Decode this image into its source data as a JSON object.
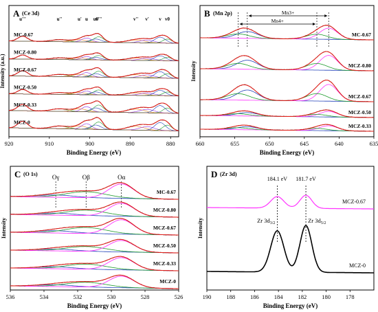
{
  "chart_data": [
    {
      "panel_letter": "A",
      "title": "(Ce 3d)",
      "type": "line",
      "xlabel": "Binding Energy (eV)",
      "ylabel": "Intensity (a.u.)",
      "xlim": [
        920,
        878
      ],
      "x_reversed": true,
      "xticks": [
        920,
        910,
        900,
        890,
        880
      ],
      "samples": [
        "MC-0.67",
        "MCZ-0.80",
        "MCZ-0.67",
        "MCZ-0.50",
        "MCZ-0.33",
        "MCZ-0"
      ],
      "peak_labels": [
        {
          "text": "u'''",
          "x": 916.6
        },
        {
          "text": "u''",
          "x": 907.5
        },
        {
          "text": "u'",
          "x": 902.5
        },
        {
          "text": "u",
          "x": 900.8
        },
        {
          "text": "u0",
          "x": 898.5
        },
        {
          "text": "v'''",
          "x": 897.8
        },
        {
          "text": "v''",
          "x": 888.6
        },
        {
          "text": "v'",
          "x": 885.8
        },
        {
          "text": "v",
          "x": 882.6
        },
        {
          "text": "v0",
          "x": 880.8
        }
      ],
      "peaks_eV": [
        916.6,
        907.5,
        902.5,
        900.8,
        898.5,
        897.8,
        888.6,
        885.8,
        882.6,
        880.8
      ],
      "sample_intensity": [
        0.55,
        0.45,
        0.6,
        0.5,
        0.7,
        0.75
      ]
    },
    {
      "panel_letter": "B",
      "title": "(Mn 2p)",
      "type": "line",
      "xlabel": "Binding Energy (eV)",
      "ylabel": "Intensity",
      "xlim": [
        660,
        635
      ],
      "x_reversed": true,
      "xticks": [
        660,
        655,
        650,
        645,
        640,
        635
      ],
      "samples": [
        "MC-0.67",
        "MCZ-0.80",
        "MCZ-0.67",
        "MCZ-0.50",
        "MCZ-0.33"
      ],
      "annotations": [
        {
          "text": "Mn3+",
          "x_from": 653.2,
          "x_to": 641.5
        },
        {
          "text": "Mn4+",
          "x_from": 654.5,
          "x_to": 643.2
        }
      ],
      "peaks_eV": {
        "Mn3+": [
          653.2,
          641.5
        ],
        "Mn4+": [
          654.5,
          643.2
        ]
      },
      "sample_intensity": [
        0.9,
        1.2,
        1.35,
        0.45,
        0.4
      ]
    },
    {
      "panel_letter": "C",
      "title": "(O 1s)",
      "type": "line",
      "xlabel": "Binding Energy (eV)",
      "ylabel": "Intensity",
      "xlim": [
        536,
        526
      ],
      "x_reversed": true,
      "xticks": [
        536,
        534,
        532,
        530,
        528,
        526
      ],
      "samples": [
        "MC-0.67",
        "MCZ-0.80",
        "MCZ-0.67",
        "MCZ-0.50",
        "MCZ-0.33",
        "MCZ-0"
      ],
      "components": [
        {
          "text": "Oγ",
          "x": 533.3
        },
        {
          "text": "Oβ",
          "x": 531.5
        },
        {
          "text": "Oα",
          "x": 529.4
        }
      ],
      "sample_intensity": [
        1.0,
        0.9,
        1.0,
        0.8,
        0.85,
        0.8
      ]
    },
    {
      "panel_letter": "D",
      "title": "(Zr 3d)",
      "type": "line",
      "xlabel": "Binding Energy (eV)",
      "ylabel": "Intensity",
      "xlim": [
        190,
        176
      ],
      "x_reversed": true,
      "xticks": [
        190,
        188,
        186,
        184,
        182,
        180,
        178
      ],
      "series": [
        {
          "name": "MCZ-0.67",
          "color": "#ff33ff",
          "peaks_eV": [
            184.1,
            181.7
          ],
          "amplitude": 0.28
        },
        {
          "name": "MCZ-0",
          "color": "#000000",
          "peaks_eV": [
            184.1,
            181.7
          ],
          "amplitude": 1.0
        }
      ],
      "peak_value_labels": [
        {
          "text": "184.1 eV",
          "x": 184.1
        },
        {
          "text": "181.7 eV",
          "x": 181.7
        }
      ],
      "peak_names": [
        {
          "base": "Zr 3d",
          "sub": "3/2",
          "x": 184.1
        },
        {
          "base": "Zr 3d",
          "sub": "5/2",
          "x": 181.7
        }
      ]
    }
  ],
  "colors": {
    "raw": "#222222",
    "fit": "#e0201a",
    "envelope_pink": "#ff33ff",
    "component_blue": "#1f3fb8",
    "component_green": "#1c9a2a",
    "component_orange": "#e58a1e",
    "component_purple": "#8a2be2",
    "baseline": "#a05a3a"
  }
}
